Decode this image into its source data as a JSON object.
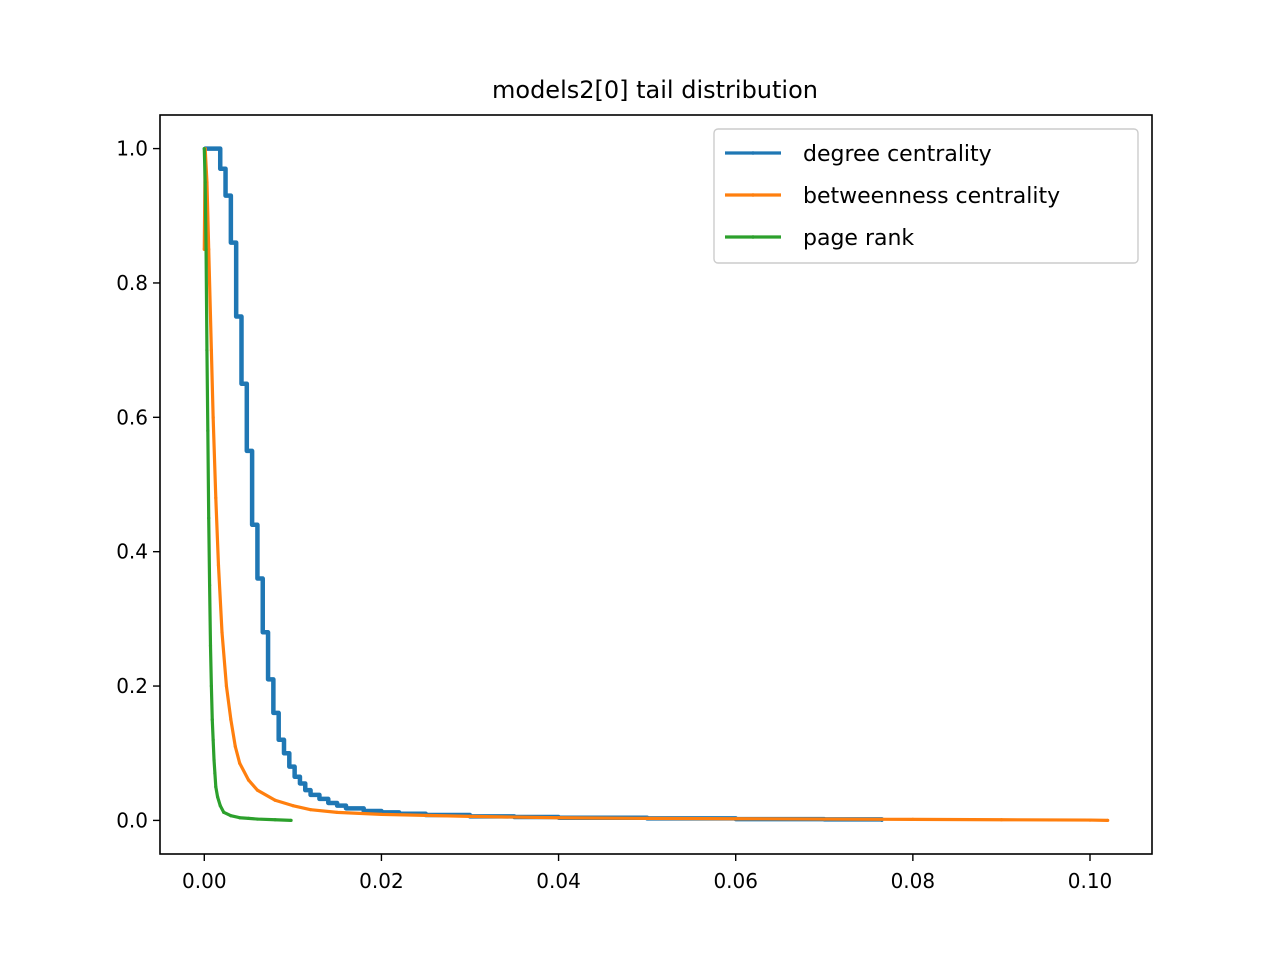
{
  "chart_data": {
    "type": "line",
    "title": "models2[0] tail distribution",
    "xlabel": "",
    "ylabel": "",
    "xlim": [
      -0.005,
      0.107
    ],
    "ylim": [
      -0.05,
      1.05
    ],
    "xticks": [
      0.0,
      0.02,
      0.04,
      0.06,
      0.08,
      0.1
    ],
    "xtick_labels": [
      "0.00",
      "0.02",
      "0.04",
      "0.06",
      "0.08",
      "0.10"
    ],
    "yticks": [
      0.0,
      0.2,
      0.4,
      0.6,
      0.8,
      1.0
    ],
    "ytick_labels": [
      "0.0",
      "0.2",
      "0.4",
      "0.6",
      "0.8",
      "1.0"
    ],
    "grid": false,
    "legend_position": "top-right",
    "series": [
      {
        "name": "degree centrality",
        "color": "#1f77b4",
        "step": true,
        "points": [
          [
            0.0,
            1.0
          ],
          [
            0.0006,
            1.0
          ],
          [
            0.0012,
            1.0
          ],
          [
            0.0018,
            0.97
          ],
          [
            0.0024,
            0.93
          ],
          [
            0.003,
            0.86
          ],
          [
            0.0036,
            0.75
          ],
          [
            0.0042,
            0.65
          ],
          [
            0.0048,
            0.55
          ],
          [
            0.0054,
            0.44
          ],
          [
            0.006,
            0.36
          ],
          [
            0.0066,
            0.28
          ],
          [
            0.0072,
            0.21
          ],
          [
            0.0078,
            0.16
          ],
          [
            0.0084,
            0.12
          ],
          [
            0.009,
            0.1
          ],
          [
            0.0096,
            0.08
          ],
          [
            0.0102,
            0.065
          ],
          [
            0.0108,
            0.055
          ],
          [
            0.0114,
            0.045
          ],
          [
            0.012,
            0.038
          ],
          [
            0.013,
            0.032
          ],
          [
            0.014,
            0.026
          ],
          [
            0.015,
            0.022
          ],
          [
            0.016,
            0.018
          ],
          [
            0.018,
            0.014
          ],
          [
            0.02,
            0.012
          ],
          [
            0.022,
            0.01
          ],
          [
            0.025,
            0.008
          ],
          [
            0.03,
            0.006
          ],
          [
            0.035,
            0.005
          ],
          [
            0.04,
            0.004
          ],
          [
            0.05,
            0.003
          ],
          [
            0.06,
            0.002
          ],
          [
            0.07,
            0.0015
          ],
          [
            0.0765,
            0.0
          ]
        ]
      },
      {
        "name": "betweenness centrality",
        "color": "#ff7f0e",
        "step": false,
        "points": [
          [
            0.0,
            0.85
          ],
          [
            0.0001,
            1.0
          ],
          [
            0.0003,
            0.95
          ],
          [
            0.0005,
            0.85
          ],
          [
            0.0008,
            0.7
          ],
          [
            0.001,
            0.6
          ],
          [
            0.0013,
            0.48
          ],
          [
            0.0016,
            0.38
          ],
          [
            0.002,
            0.28
          ],
          [
            0.0025,
            0.2
          ],
          [
            0.003,
            0.15
          ],
          [
            0.0035,
            0.11
          ],
          [
            0.004,
            0.085
          ],
          [
            0.005,
            0.06
          ],
          [
            0.006,
            0.045
          ],
          [
            0.008,
            0.03
          ],
          [
            0.01,
            0.022
          ],
          [
            0.012,
            0.016
          ],
          [
            0.015,
            0.012
          ],
          [
            0.02,
            0.009
          ],
          [
            0.03,
            0.006
          ],
          [
            0.04,
            0.004
          ],
          [
            0.05,
            0.003
          ],
          [
            0.06,
            0.0025
          ],
          [
            0.07,
            0.002
          ],
          [
            0.08,
            0.0015
          ],
          [
            0.09,
            0.001
          ],
          [
            0.1,
            0.0005
          ],
          [
            0.102,
            0.0
          ]
        ]
      },
      {
        "name": "page rank",
        "color": "#2ca02c",
        "step": false,
        "points": [
          [
            0.0,
            1.0
          ],
          [
            0.0001,
            0.95
          ],
          [
            0.0002,
            0.85
          ],
          [
            0.0003,
            0.7
          ],
          [
            0.0004,
            0.58
          ],
          [
            0.0005,
            0.45
          ],
          [
            0.0006,
            0.35
          ],
          [
            0.0007,
            0.26
          ],
          [
            0.0008,
            0.2
          ],
          [
            0.0009,
            0.15
          ],
          [
            0.001,
            0.12
          ],
          [
            0.0011,
            0.09
          ],
          [
            0.0012,
            0.07
          ],
          [
            0.0013,
            0.05
          ],
          [
            0.0015,
            0.035
          ],
          [
            0.0018,
            0.022
          ],
          [
            0.0022,
            0.012
          ],
          [
            0.003,
            0.007
          ],
          [
            0.004,
            0.004
          ],
          [
            0.005,
            0.003
          ],
          [
            0.006,
            0.002
          ],
          [
            0.008,
            0.001
          ],
          [
            0.0098,
            0.0
          ]
        ]
      }
    ]
  }
}
